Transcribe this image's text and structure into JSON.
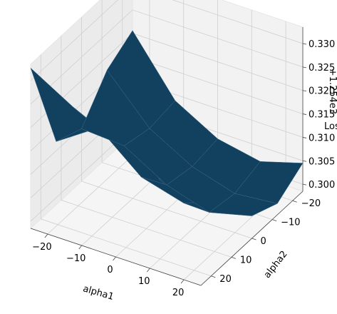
{
  "chart_data": {
    "type": "surface3d",
    "xlabel": "alpha1",
    "ylabel": "alpha2",
    "zlabel": "Loss",
    "z_offset_text": "+1.254e3",
    "x_ticks": [
      "−20",
      "−10",
      "0",
      "10",
      "20"
    ],
    "y_ticks": [
      "−20",
      "−10",
      "0",
      "10",
      "20"
    ],
    "z_ticks": [
      "0.300",
      "0.305",
      "0.310",
      "0.315",
      "0.320",
      "0.325",
      "0.330"
    ],
    "x": [
      -25,
      -12.5,
      0,
      12.5,
      25
    ],
    "y": [
      -25,
      -12.5,
      0,
      12.5,
      25
    ],
    "z": [
      [
        0.3206,
        0.3087,
        0.3036,
        0.3018,
        0.3045
      ],
      [
        0.3172,
        0.3078,
        0.3027,
        0.3,
        0.3009
      ],
      [
        0.3097,
        0.3091,
        0.3038,
        0.301,
        0.3033
      ],
      [
        0.312,
        0.318,
        0.3105,
        0.308,
        0.3115
      ],
      [
        0.3327,
        0.3274,
        0.3228,
        0.3183,
        0.3167
      ]
    ],
    "xlim": [
      -25,
      25
    ],
    "ylim": [
      -25,
      25
    ],
    "zlim": [
      0.2985,
      0.3335
    ],
    "surface_color": "#12405f",
    "pane_color": "#f2f2f2",
    "grid": true
  }
}
